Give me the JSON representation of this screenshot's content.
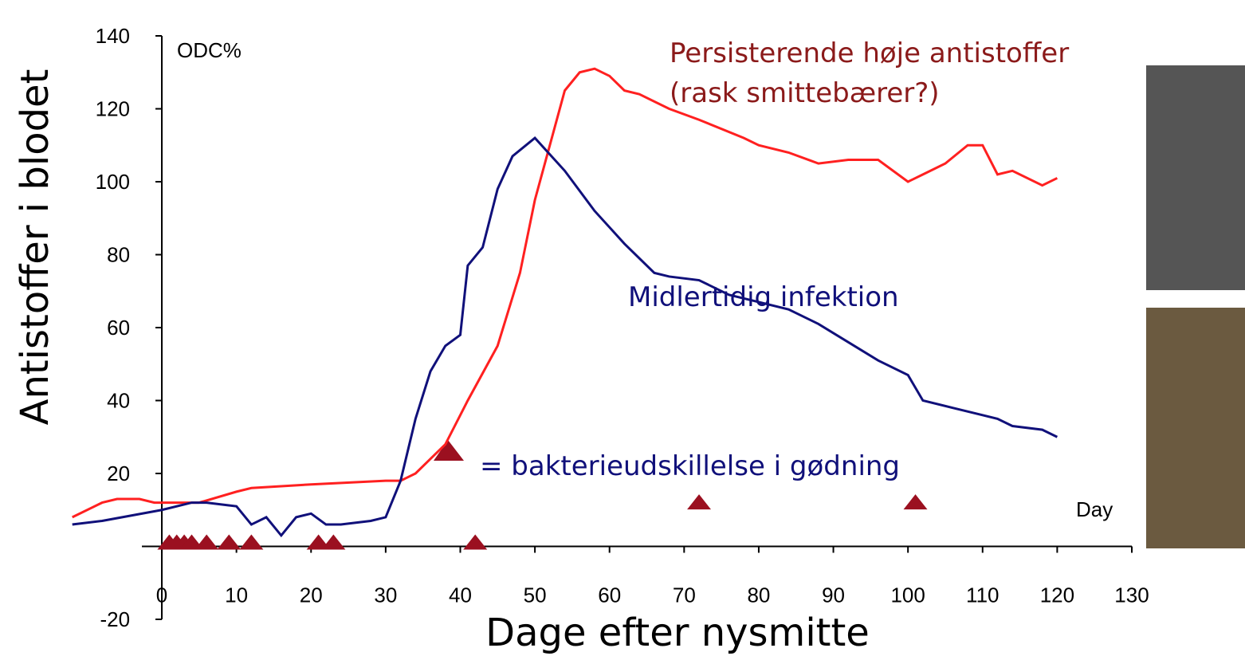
{
  "chart_data": {
    "type": "line",
    "y_label": "Antistoffer i blodet",
    "x_label": "Dage efter nysmitte",
    "y_unit": "ODC%",
    "x_unit": "Day",
    "annotation": "(rask smittebærer?)",
    "xlim": [
      -12,
      130
    ],
    "xticks": [
      0,
      10,
      20,
      30,
      40,
      50,
      60,
      70,
      80,
      90,
      100,
      110,
      120,
      130
    ],
    "ylim": [
      -20,
      140
    ],
    "yticks": [
      140,
      120,
      100,
      80,
      60,
      40,
      20,
      -20
    ],
    "series": [
      {
        "name": "Persisterende høje antistoffer",
        "color": "#ff2020",
        "x": [
          -12,
          -8,
          -6,
          -3,
          -1,
          5,
          10,
          12,
          20,
          30,
          32,
          34,
          38,
          41,
          45,
          48,
          50,
          54,
          56,
          58,
          60,
          62,
          64,
          68,
          72,
          78,
          80,
          84,
          88,
          92,
          96,
          100,
          102,
          105,
          108,
          110,
          112,
          114,
          118,
          120
        ],
        "values": [
          8,
          12,
          13,
          13,
          12,
          12,
          15,
          16,
          17,
          18,
          18,
          20,
          28,
          40,
          55,
          75,
          95,
          125,
          130,
          131,
          129,
          125,
          124,
          120,
          117,
          112,
          110,
          108,
          105,
          106,
          106,
          100,
          102,
          105,
          110,
          110,
          102,
          103,
          99,
          101
        ]
      },
      {
        "name": "Midlertidig infektion",
        "color": "#10107a",
        "x": [
          -12,
          -8,
          0,
          4,
          6,
          10,
          12,
          14,
          16,
          18,
          20,
          22,
          24,
          28,
          30,
          32,
          34,
          36,
          38,
          40,
          41,
          43,
          45,
          47,
          50,
          54,
          58,
          62,
          66,
          68,
          72,
          76,
          80,
          84,
          88,
          92,
          96,
          100,
          102,
          106,
          110,
          112,
          114,
          118,
          120
        ],
        "values": [
          6,
          7,
          10,
          12,
          12,
          11,
          6,
          8,
          3,
          8,
          9,
          6,
          6,
          7,
          8,
          18,
          35,
          48,
          55,
          58,
          77,
          82,
          98,
          107,
          112,
          103,
          92,
          83,
          75,
          74,
          73,
          69,
          67,
          65,
          61,
          56,
          51,
          47,
          40,
          38,
          36,
          35,
          33,
          32,
          30
        ]
      },
      {
        "name": "= bakterieudskillelse i gødning",
        "color": "#9b1020",
        "marker": "triangle",
        "x": [
          1,
          2,
          3,
          4,
          6,
          9,
          12,
          21,
          23,
          42,
          72,
          101
        ],
        "values": [
          0,
          0,
          0,
          0,
          0,
          0,
          0,
          0,
          0,
          0,
          11,
          11
        ]
      }
    ]
  }
}
